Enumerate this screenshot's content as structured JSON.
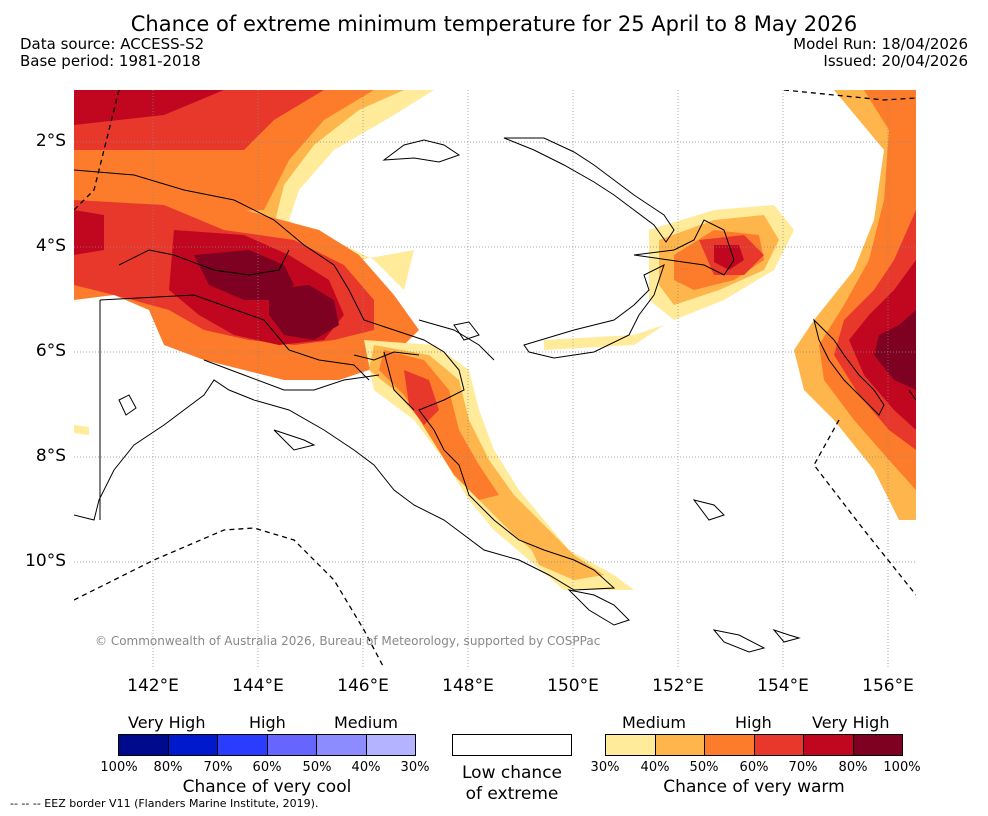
{
  "title": "Chance of extreme minimum temperature for 25 April to 8 May 2026",
  "meta": {
    "data_source": "Data source: ACCESS-S2",
    "base_period": "Base period: 1981-2018",
    "model_run": "Model Run: 18/04/2026",
    "issued": "Issued: 20/04/2026"
  },
  "axes": {
    "lat_labels": [
      "2°S",
      "4°S",
      "6°S",
      "8°S",
      "10°S"
    ],
    "lon_labels": [
      "142°E",
      "144°E",
      "146°E",
      "148°E",
      "150°E",
      "152°E",
      "154°E",
      "156°E"
    ]
  },
  "copyright": "© Commonwealth of Australia 2026, Bureau of Meteorology, supported by COSPPac",
  "footnote": "--  --  -- EEZ border V11 (Flanders Marine Institute, 2019).",
  "legend_cool": {
    "titles": [
      "Very High",
      "High",
      "Medium"
    ],
    "colors": [
      "#000a8c",
      "#0019cc",
      "#2a3dff",
      "#6666ff",
      "#8c8cff",
      "#b3b3ff"
    ],
    "ticks": [
      "100%",
      "80%",
      "70%",
      "60%",
      "50%",
      "40%",
      "30%"
    ],
    "caption": "Chance of very cool"
  },
  "legend_low": {
    "caption_line1": "Low chance",
    "caption_line2": "of extreme"
  },
  "legend_warm": {
    "titles": [
      "Medium",
      "High",
      "Very High"
    ],
    "colors": [
      "#ffeb99",
      "#feb54b",
      "#fd7c2b",
      "#e8382c",
      "#c10720",
      "#7f0121"
    ],
    "ticks": [
      "30%",
      "40%",
      "50%",
      "60%",
      "70%",
      "80%",
      "100%"
    ],
    "caption": "Chance of very warm"
  }
}
